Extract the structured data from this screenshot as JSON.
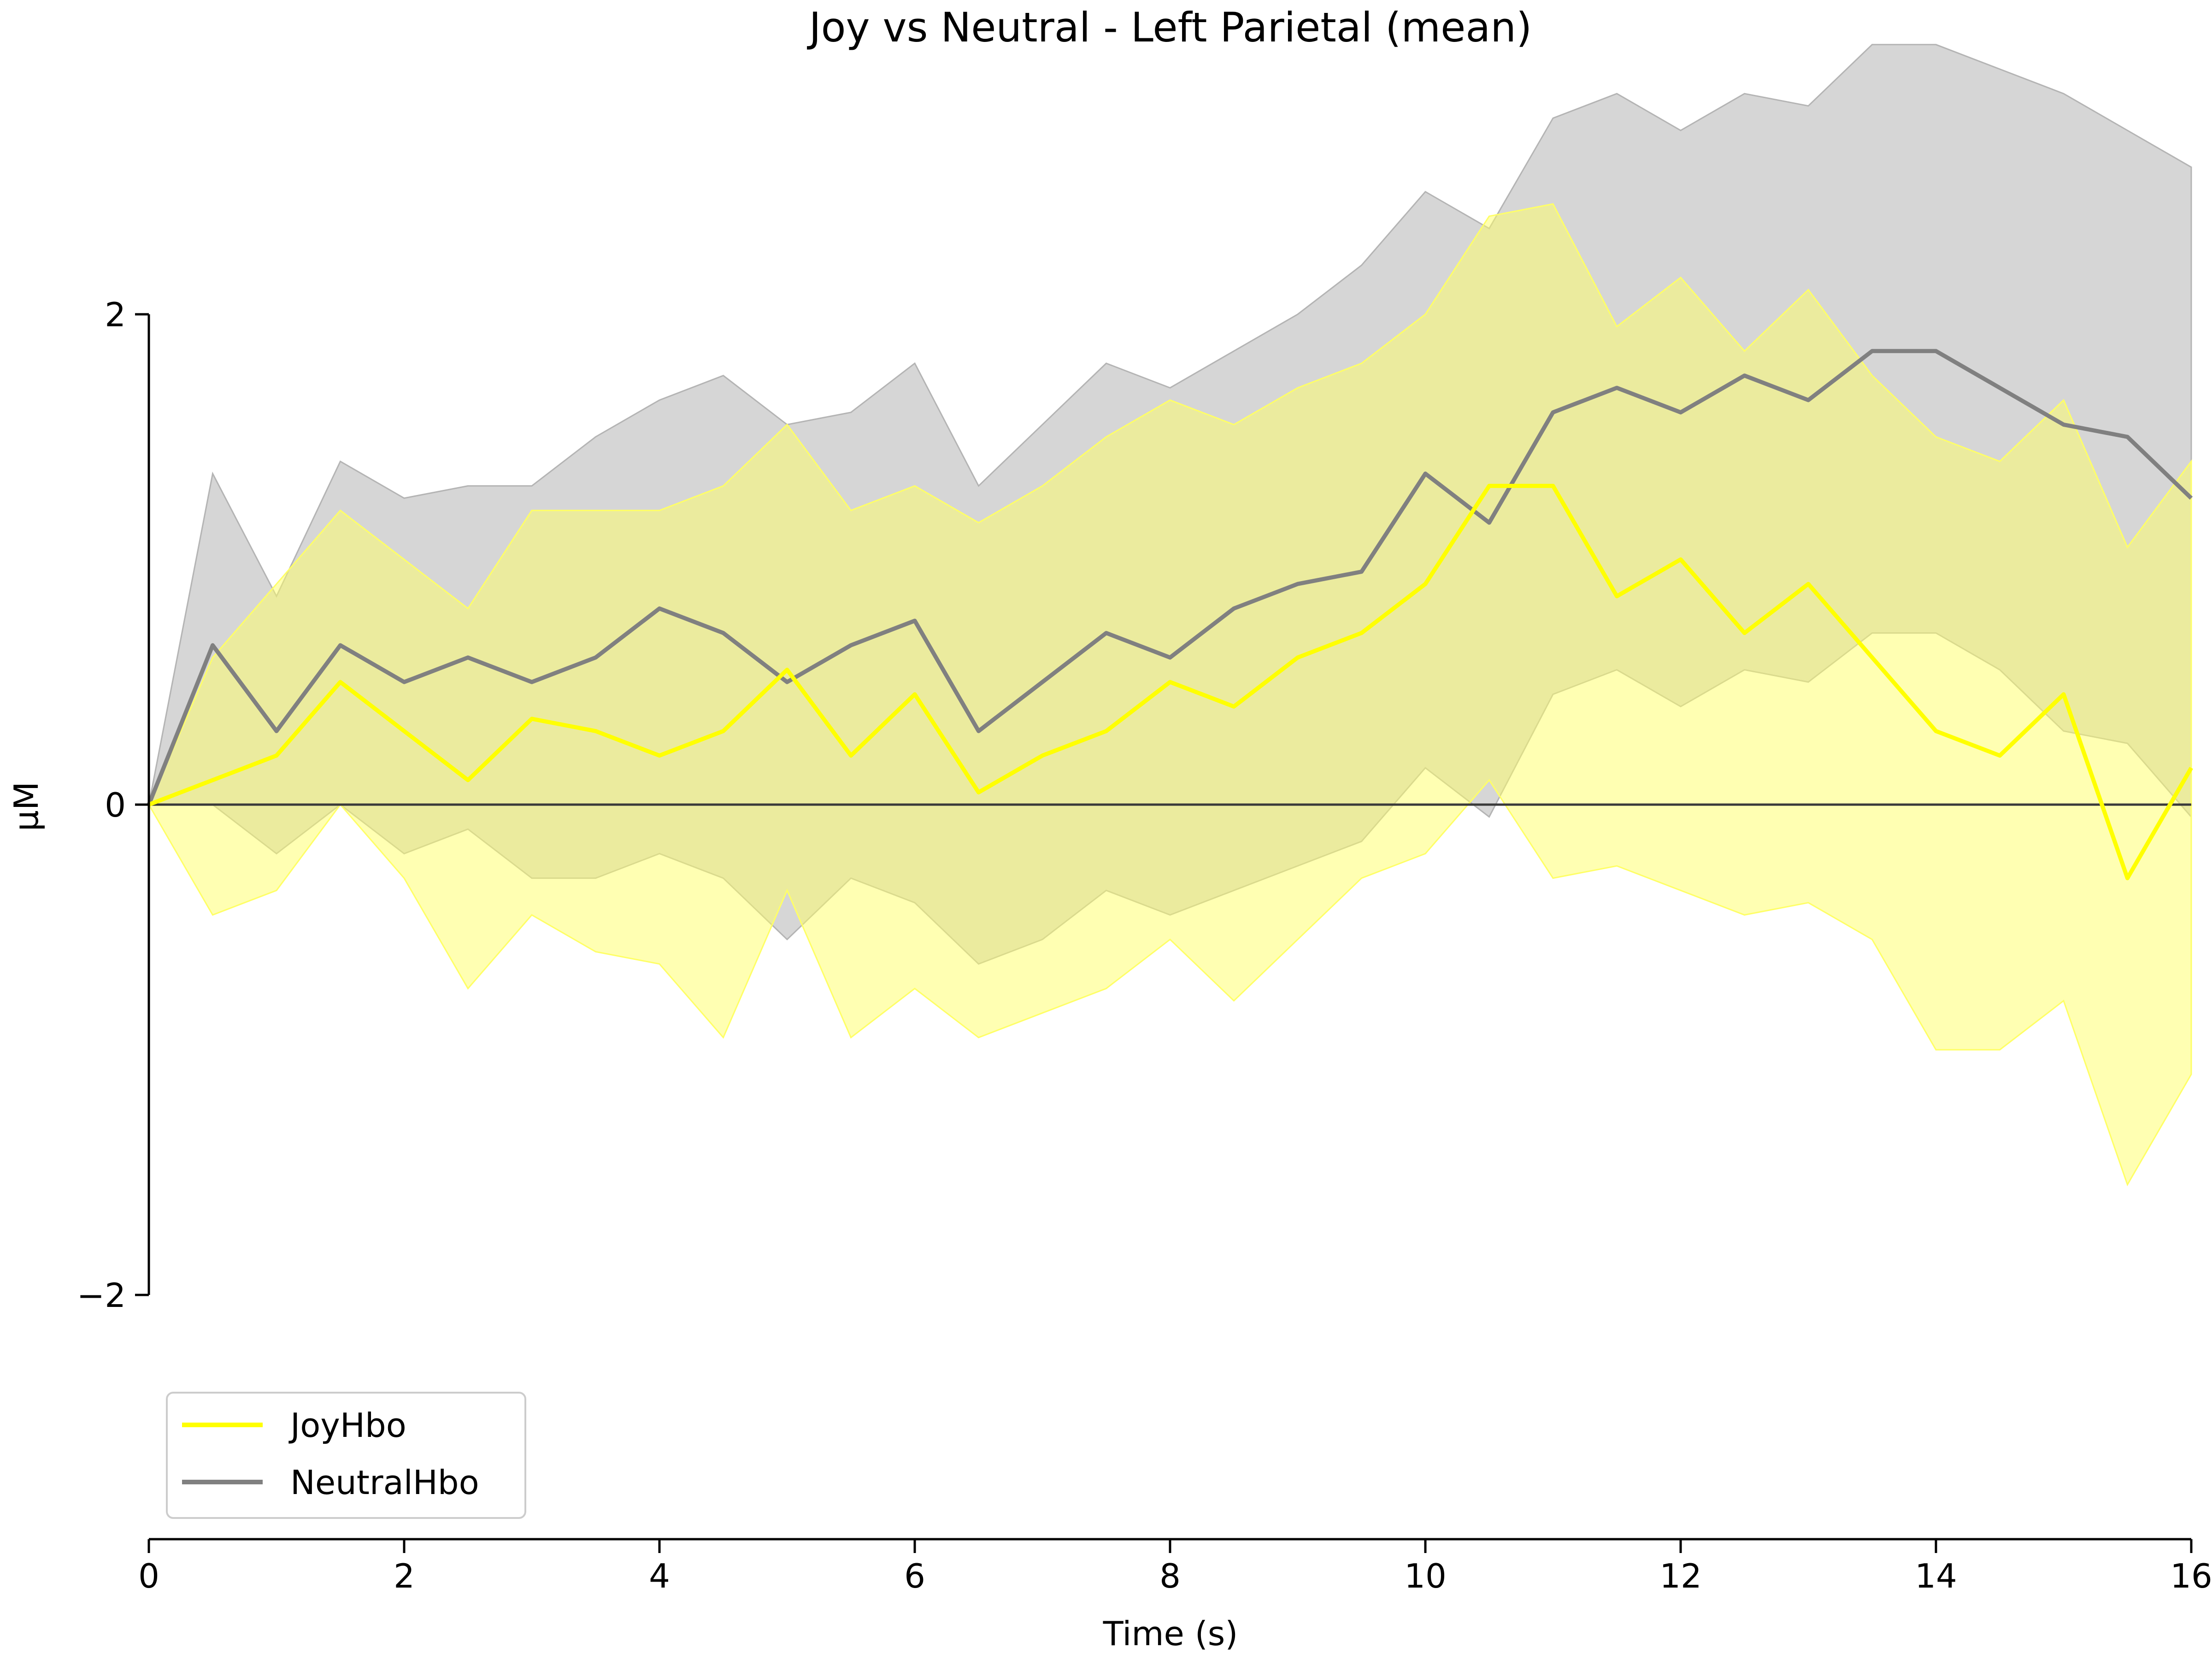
{
  "chart_data": {
    "type": "line",
    "title": "Joy vs Neutral - Left Parietal (mean)",
    "xlabel": "Time (s)",
    "ylabel": "µM",
    "xlim": [
      0,
      16
    ],
    "ylim": [
      -2,
      2
    ],
    "x_ticks": [
      "0",
      "2",
      "4",
      "6",
      "8",
      "10",
      "12",
      "14",
      "16"
    ],
    "y_ticks": [
      "2",
      "0",
      "−2"
    ],
    "grid": false,
    "legend_position": "lower-left",
    "zero_line": true,
    "x": [
      0,
      0.5,
      1,
      1.5,
      2,
      2.5,
      3,
      3.5,
      4,
      4.5,
      5,
      5.5,
      6,
      6.5,
      7,
      7.5,
      8,
      8.5,
      9,
      9.5,
      10,
      10.5,
      11,
      11.5,
      12,
      12.5,
      13,
      13.5,
      14,
      14.5,
      15,
      15.5,
      16
    ],
    "series": [
      {
        "name": "JoyHbo",
        "color": "#ffff00",
        "band_color": "#ffff66",
        "values": [
          0,
          0.1,
          0.2,
          0.5,
          0.3,
          0.1,
          0.35,
          0.3,
          0.2,
          0.3,
          0.55,
          0.2,
          0.45,
          0.05,
          0.2,
          0.3,
          0.5,
          0.4,
          0.6,
          0.7,
          0.9,
          1.3,
          1.3,
          0.85,
          1.0,
          0.7,
          0.9,
          0.6,
          0.3,
          0.2,
          0.45,
          -0.3,
          0.15
        ],
        "lower": [
          0,
          -0.45,
          -0.35,
          0.0,
          -0.3,
          -0.75,
          -0.45,
          -0.6,
          -0.65,
          -0.95,
          -0.35,
          -0.95,
          -0.75,
          -0.95,
          -0.85,
          -0.75,
          -0.55,
          -0.8,
          -0.55,
          -0.3,
          -0.2,
          0.1,
          -0.3,
          -0.25,
          -0.35,
          -0.45,
          -0.4,
          -0.55,
          -1.0,
          -1.0,
          -0.8,
          -1.55,
          -1.1
        ],
        "upper": [
          0,
          0.6,
          0.9,
          1.2,
          1.0,
          0.8,
          1.2,
          1.2,
          1.2,
          1.3,
          1.55,
          1.2,
          1.3,
          1.15,
          1.3,
          1.5,
          1.65,
          1.55,
          1.7,
          1.8,
          2.0,
          2.4,
          2.45,
          1.95,
          2.15,
          1.85,
          2.1,
          1.75,
          1.5,
          1.4,
          1.65,
          1.05,
          1.4
        ]
      },
      {
        "name": "NeutralHbo",
        "color": "#808080",
        "band_color": "#b4b4b4",
        "values": [
          0,
          0.65,
          0.3,
          0.65,
          0.5,
          0.6,
          0.5,
          0.6,
          0.8,
          0.7,
          0.5,
          0.65,
          0.75,
          0.3,
          0.5,
          0.7,
          0.6,
          0.8,
          0.9,
          0.95,
          1.35,
          1.15,
          1.6,
          1.7,
          1.6,
          1.75,
          1.65,
          1.85,
          1.85,
          1.7,
          1.55,
          1.5,
          1.25
        ],
        "lower": [
          0,
          0.0,
          -0.2,
          0.0,
          -0.2,
          -0.1,
          -0.3,
          -0.3,
          -0.2,
          -0.3,
          -0.55,
          -0.3,
          -0.4,
          -0.65,
          -0.55,
          -0.35,
          -0.45,
          -0.35,
          -0.25,
          -0.15,
          0.15,
          -0.05,
          0.45,
          0.55,
          0.4,
          0.55,
          0.5,
          0.7,
          0.7,
          0.55,
          0.3,
          0.25,
          -0.05
        ],
        "upper": [
          0,
          1.35,
          0.85,
          1.4,
          1.25,
          1.3,
          1.3,
          1.5,
          1.65,
          1.75,
          1.55,
          1.6,
          1.8,
          1.3,
          1.55,
          1.8,
          1.7,
          1.85,
          2.0,
          2.2,
          2.5,
          2.35,
          2.8,
          2.9,
          2.75,
          2.9,
          2.85,
          3.1,
          3.1,
          3.0,
          2.9,
          2.75,
          2.6
        ]
      }
    ]
  }
}
